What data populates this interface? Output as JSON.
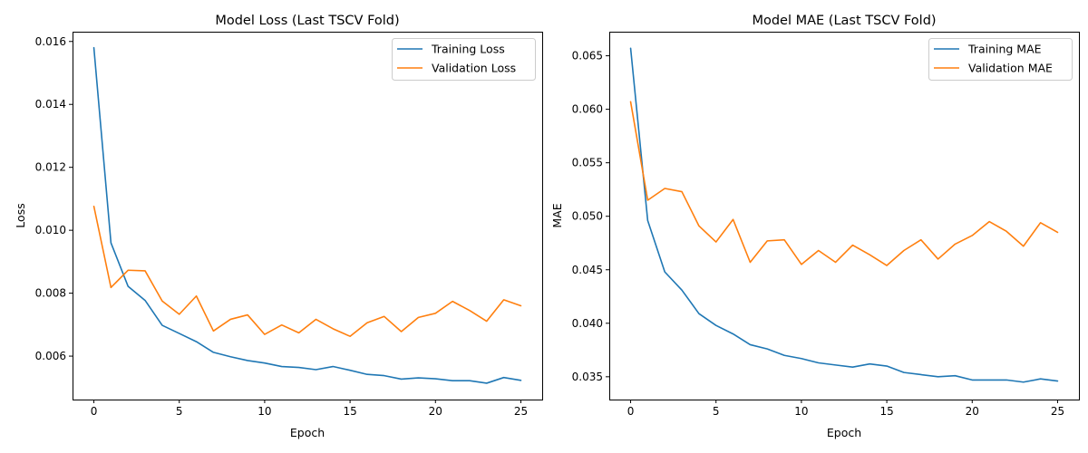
{
  "chart_data": [
    {
      "type": "line",
      "title": "Model Loss (Last TSCV Fold)",
      "xlabel": "Epoch",
      "ylabel": "Loss",
      "xlim": [
        -1.25,
        26.25
      ],
      "ylim": [
        0.00462,
        0.01631
      ],
      "xticks": [
        0,
        5,
        10,
        15,
        20,
        25
      ],
      "yticks": [
        0.006,
        0.008,
        0.01,
        0.012,
        0.014,
        0.016
      ],
      "ytick_labels": [
        "0.006",
        "0.008",
        "0.010",
        "0.012",
        "0.014",
        "0.016"
      ],
      "grid": false,
      "legend": "upper right",
      "x": [
        0,
        1,
        2,
        3,
        4,
        5,
        6,
        7,
        8,
        9,
        10,
        11,
        12,
        13,
        14,
        15,
        16,
        17,
        18,
        19,
        20,
        21,
        22,
        23,
        24,
        25
      ],
      "series": [
        {
          "name": "Training Loss",
          "color": "#1f77b4",
          "values": [
            0.0158,
            0.0096,
            0.00822,
            0.00777,
            0.00698,
            0.00672,
            0.00646,
            0.00612,
            0.00598,
            0.00586,
            0.00578,
            0.00567,
            0.00564,
            0.00557,
            0.00567,
            0.00555,
            0.00542,
            0.00538,
            0.00527,
            0.00531,
            0.00528,
            0.00522,
            0.00522,
            0.00514,
            0.00532,
            0.00523
          ]
        },
        {
          "name": "Validation Loss",
          "color": "#ff7f0e",
          "values": [
            0.01076,
            0.00818,
            0.00873,
            0.00871,
            0.00775,
            0.00733,
            0.00791,
            0.0068,
            0.00717,
            0.00731,
            0.00669,
            0.00699,
            0.00674,
            0.00717,
            0.00687,
            0.00663,
            0.00706,
            0.00726,
            0.00678,
            0.00723,
            0.00736,
            0.00774,
            0.00745,
            0.00711,
            0.00779,
            0.0076
          ]
        }
      ]
    },
    {
      "type": "line",
      "title": "Model MAE (Last TSCV Fold)",
      "xlabel": "Epoch",
      "ylabel": "MAE",
      "xlim": [
        -1.25,
        26.25
      ],
      "ylim": [
        0.03287,
        0.06725
      ],
      "xticks": [
        0,
        5,
        10,
        15,
        20,
        25
      ],
      "yticks": [
        0.035,
        0.04,
        0.045,
        0.05,
        0.055,
        0.06,
        0.065
      ],
      "ytick_labels": [
        "0.035",
        "0.040",
        "0.045",
        "0.050",
        "0.055",
        "0.060",
        "0.065"
      ],
      "grid": false,
      "legend": "upper right",
      "x": [
        0,
        1,
        2,
        3,
        4,
        5,
        6,
        7,
        8,
        9,
        10,
        11,
        12,
        13,
        14,
        15,
        16,
        17,
        18,
        19,
        20,
        21,
        22,
        23,
        24,
        25
      ],
      "series": [
        {
          "name": "Training MAE",
          "color": "#1f77b4",
          "values": [
            0.0657,
            0.0496,
            0.0448,
            0.0431,
            0.0409,
            0.0398,
            0.039,
            0.038,
            0.0376,
            0.037,
            0.0367,
            0.0363,
            0.0361,
            0.0359,
            0.0362,
            0.036,
            0.0354,
            0.0352,
            0.035,
            0.0351,
            0.0347,
            0.0347,
            0.0347,
            0.0345,
            0.0348,
            0.0346
          ]
        },
        {
          "name": "Validation MAE",
          "color": "#ff7f0e",
          "values": [
            0.0607,
            0.0515,
            0.0526,
            0.0523,
            0.0491,
            0.0476,
            0.0497,
            0.0457,
            0.0477,
            0.0478,
            0.0455,
            0.0468,
            0.0457,
            0.0473,
            0.0464,
            0.0454,
            0.0468,
            0.0478,
            0.046,
            0.0474,
            0.0482,
            0.0495,
            0.0486,
            0.0472,
            0.0494,
            0.0485
          ]
        }
      ]
    }
  ]
}
